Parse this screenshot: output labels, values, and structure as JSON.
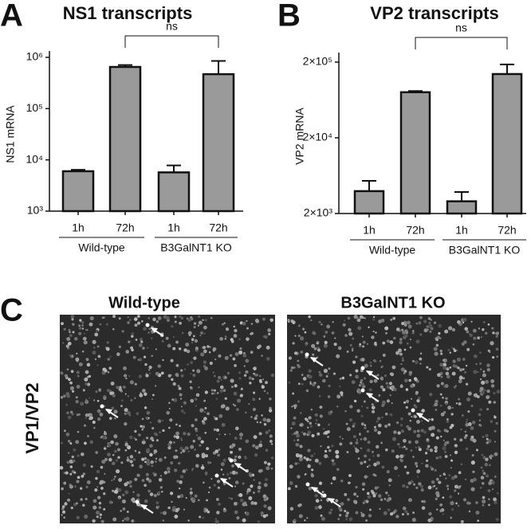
{
  "chart_data": [
    {
      "type": "bar",
      "panel": "A",
      "title": "NS1 transcripts",
      "y_label": "NS1 mRNA",
      "log_scale": true,
      "categories": [
        "1h",
        "72h",
        "1h",
        "72h"
      ],
      "groups": [
        "Wild-type",
        "B3GalNT1 KO"
      ],
      "values": [
        6000,
        650000,
        5700,
        470000
      ],
      "errors": [
        400,
        60000,
        2100,
        380000
      ],
      "color": "#9a9a9a",
      "annotation": "ns",
      "ylim": [
        1000,
        1000000
      ],
      "yticks": [
        {
          "value": 1000,
          "label": "10³"
        },
        {
          "value": 10000,
          "label": "10⁴"
        },
        {
          "value": 100000,
          "label": "10⁵"
        },
        {
          "value": 1000000,
          "label": "10⁶"
        }
      ]
    },
    {
      "type": "bar",
      "panel": "B",
      "title": "VP2 transcripts",
      "y_label": "VP2 mRNA",
      "log_scale": true,
      "categories": [
        "1h",
        "72h",
        "1h",
        "72h"
      ],
      "groups": [
        "Wild-type",
        "B3GalNT1 KO"
      ],
      "values": [
        3950,
        80000,
        2900,
        139000
      ],
      "errors": [
        1450,
        3000,
        950,
        47000
      ],
      "color": "#9a9a9a",
      "annotation": "ns",
      "ylim": [
        2000,
        220000
      ],
      "yticks": [
        {
          "value": 2000,
          "label": "2×10³"
        },
        {
          "value": 20000,
          "label": "2×10⁴"
        },
        {
          "value": 200000,
          "label": "2×10⁵"
        }
      ]
    }
  ],
  "panel_c": {
    "panel": "C",
    "row_label": "VP1/VP2",
    "columns": [
      "Wild-type",
      "B3GalNT1 KO"
    ]
  }
}
